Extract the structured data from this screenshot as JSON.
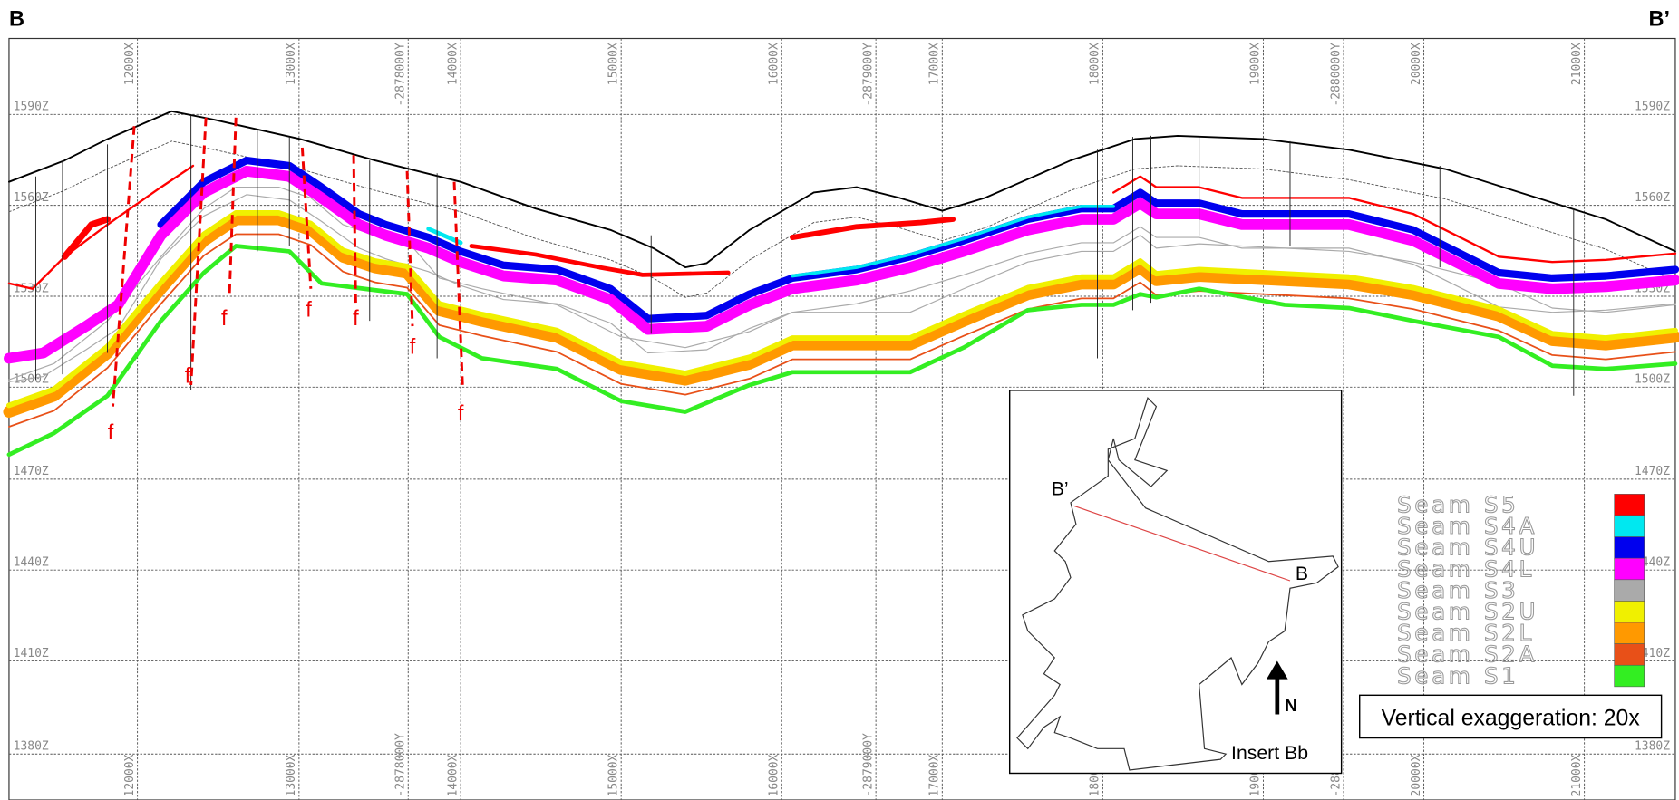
{
  "title_left": "B",
  "title_right": "B’",
  "z_labels": [
    "1590Z",
    "1560Z",
    "1530Z",
    "1500Z",
    "1470Z",
    "1440Z",
    "1410Z",
    "1380Z"
  ],
  "x_labels": [
    "12000X",
    "13000X",
    "-2878000Y",
    "14000X",
    "15000X",
    "16000X",
    "-2879000Y",
    "17000X",
    "18000X",
    "19000X",
    "-2880000Y",
    "20000X",
    "21000X"
  ],
  "fault_label": "f",
  "legend": [
    {
      "name": "Seam S5",
      "color": "#ff0000"
    },
    {
      "name": "Seam S4A",
      "color": "#00e8f0"
    },
    {
      "name": "Seam S4U",
      "color": "#0000ee"
    },
    {
      "name": "Seam S4L",
      "color": "#ff00ff"
    },
    {
      "name": "Seam S3",
      "color": "#aaaaaa"
    },
    {
      "name": "Seam S2U",
      "color": "#f0f000"
    },
    {
      "name": "Seam S2L",
      "color": "#ff9900"
    },
    {
      "name": "Seam S2A",
      "color": "#e85018"
    },
    {
      "name": "Seam S1",
      "color": "#33ee22"
    }
  ],
  "note": "Vertical exaggeration:  20x",
  "insert": {
    "label": "Insert Bb",
    "start": "B",
    "end": "B’",
    "north": "N"
  }
}
